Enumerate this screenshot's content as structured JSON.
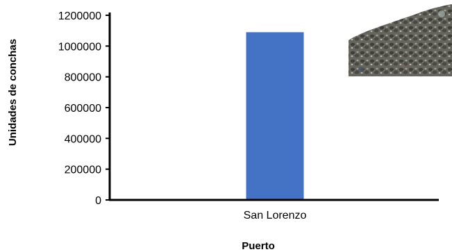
{
  "chart_data": {
    "type": "bar",
    "categories": [
      "San Lorenzo"
    ],
    "series": [
      {
        "values": [
          1090000
        ]
      }
    ],
    "xlabel": "Puerto",
    "ylabel": "Unidades de conchas",
    "ylim": [
      0,
      1200000
    ],
    "yticks": [
      0,
      200000,
      400000,
      600000,
      800000,
      1000000,
      1200000
    ],
    "ytick_labels": [
      "0",
      "200000",
      "400000",
      "600000",
      "800000",
      "1000000",
      "1200000"
    ],
    "grid": false,
    "legend": "none",
    "colors": {
      "bar": "#4472C4",
      "axis": "#000000"
    },
    "inset_image": "photo of dark shells"
  }
}
